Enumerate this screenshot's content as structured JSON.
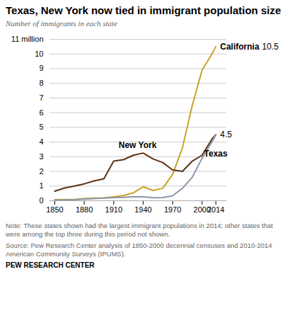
{
  "chart_data": {
    "type": "line",
    "title": "Texas, New York now tied in immigrant population size",
    "subtitle": "Number of immigrants in each state",
    "note": "Note: These states shown had the largest immigrant populations in 2014; other states that\nwere among the top three during this period not shown.",
    "source": "Source: Pew Research Center analysis of 1850-2000 decennial censuses and 2010-2014\nAmerican Community Surveys (IPUMS).",
    "credit": "PEW RESEARCH CENTER",
    "x": [
      1850,
      1860,
      1870,
      1880,
      1890,
      1900,
      1910,
      1920,
      1930,
      1940,
      1950,
      1960,
      1970,
      1980,
      1990,
      2000,
      2010,
      2014
    ],
    "series": [
      {
        "name": "California",
        "color": "#c9a227",
        "values": [
          0.07,
          0.09,
          0.09,
          0.15,
          0.18,
          0.19,
          0.27,
          0.35,
          0.54,
          0.95,
          0.7,
          0.85,
          1.8,
          3.6,
          6.5,
          8.9,
          10.0,
          10.5
        ]
      },
      {
        "name": "New York",
        "color": "#5c3317",
        "values": [
          0.65,
          0.87,
          1.0,
          1.15,
          1.35,
          1.5,
          2.7,
          2.8,
          3.1,
          3.25,
          2.85,
          2.6,
          2.1,
          2.0,
          2.7,
          3.1,
          4.2,
          4.5
        ]
      },
      {
        "name": "Texas",
        "color": "#8b97a8",
        "values": [
          0.04,
          0.05,
          0.07,
          0.11,
          0.15,
          0.18,
          0.22,
          0.23,
          0.28,
          0.26,
          0.21,
          0.22,
          0.34,
          0.85,
          1.6,
          2.9,
          4.0,
          4.5
        ]
      }
    ],
    "xlim": [
      1845,
      2025
    ],
    "xticks": [
      1850,
      1880,
      1910,
      1940,
      1970,
      2000,
      2014
    ],
    "ylim": [
      0,
      11
    ],
    "yticks": [
      0,
      1,
      2,
      3,
      4,
      5,
      6,
      7,
      8,
      9,
      10,
      {
        "value": 11,
        "label": "11 million"
      }
    ],
    "grid": true,
    "annotations": [
      {
        "text": "California",
        "x": 2014,
        "y": 10.5
      },
      {
        "text": "10.5",
        "x": 2014,
        "y": 10.5
      },
      {
        "text": "4.5",
        "x": 2014,
        "y": 4.5
      },
      {
        "text": "Texas",
        "x": 2002,
        "y": 3.2
      },
      {
        "text": "New York",
        "x": 1915,
        "y": 3.8
      }
    ]
  }
}
